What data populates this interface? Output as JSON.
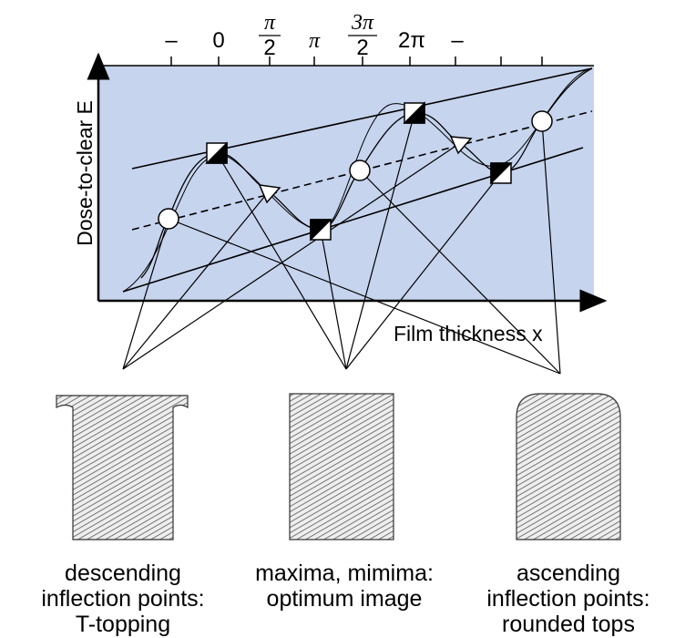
{
  "y_axis_label": "Dose-to-clear E",
  "x_axis_label": "Film thickness x",
  "top_axis": {
    "labels": [
      "–",
      "0",
      {
        "numerator": "π",
        "denominator": "2"
      },
      "π",
      {
        "numerator": "3π",
        "denominator": "2"
      },
      "2π",
      "–"
    ]
  },
  "captions": [
    {
      "lines": [
        "descending",
        "inflection points:",
        "T-topping"
      ]
    },
    {
      "lines": [
        "maxima, mimima:",
        "optimum image"
      ]
    },
    {
      "lines": [
        "ascending",
        "inflection points:",
        "rounded tops"
      ]
    }
  ]
}
